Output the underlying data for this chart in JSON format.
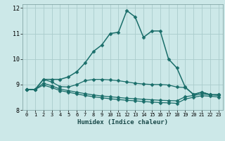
{
  "title": "",
  "xlabel": "Humidex (Indice chaleur)",
  "ylabel": "",
  "bg_color": "#cce8e8",
  "grid_color": "#aacccc",
  "line_color": "#1a6e6a",
  "xlim": [
    -0.5,
    23.5
  ],
  "ylim": [
    8.4,
    12.15
  ],
  "xticks": [
    0,
    1,
    2,
    3,
    4,
    5,
    6,
    7,
    8,
    9,
    10,
    11,
    12,
    13,
    14,
    15,
    16,
    17,
    18,
    19,
    20,
    21,
    22,
    23
  ],
  "yticks": [
    8,
    9,
    10,
    11,
    12
  ],
  "series": [
    {
      "x": [
        0,
        1,
        2,
        3,
        4,
        5,
        6,
        7,
        8,
        9,
        10,
        11,
        12,
        13,
        14,
        15,
        16,
        17,
        18,
        19,
        20,
        21,
        22,
        23
      ],
      "y": [
        8.8,
        8.8,
        9.2,
        9.2,
        9.2,
        9.3,
        9.5,
        9.85,
        10.3,
        10.55,
        11.0,
        11.05,
        11.9,
        11.65,
        10.85,
        11.1,
        11.1,
        10.0,
        9.65,
        8.9,
        8.6,
        8.7,
        8.6,
        8.6
      ],
      "marker": "D",
      "markersize": 2.5,
      "linewidth": 1.1
    },
    {
      "x": [
        0,
        1,
        2,
        3,
        4,
        5,
        6,
        7,
        8,
        9,
        10,
        11,
        12,
        13,
        14,
        15,
        16,
        17,
        18,
        19,
        20,
        21,
        22,
        23
      ],
      "y": [
        8.8,
        8.8,
        9.2,
        9.1,
        8.92,
        8.9,
        9.0,
        9.15,
        9.2,
        9.2,
        9.18,
        9.15,
        9.1,
        9.05,
        9.02,
        9.0,
        9.0,
        8.98,
        8.9,
        8.88,
        8.62,
        8.7,
        8.6,
        8.6
      ],
      "marker": "D",
      "markersize": 2.5,
      "linewidth": 0.9
    },
    {
      "x": [
        0,
        1,
        2,
        3,
        4,
        5,
        6,
        7,
        8,
        9,
        10,
        11,
        12,
        13,
        14,
        15,
        16,
        17,
        18,
        19,
        20,
        21,
        22,
        23
      ],
      "y": [
        8.8,
        8.8,
        9.05,
        8.95,
        8.82,
        8.76,
        8.7,
        8.64,
        8.59,
        8.55,
        8.52,
        8.49,
        8.46,
        8.44,
        8.42,
        8.4,
        8.38,
        8.37,
        8.36,
        8.52,
        8.57,
        8.63,
        8.6,
        8.57
      ],
      "marker": "D",
      "markersize": 2.5,
      "linewidth": 0.9
    },
    {
      "x": [
        0,
        1,
        2,
        3,
        4,
        5,
        6,
        7,
        8,
        9,
        10,
        11,
        12,
        13,
        14,
        15,
        16,
        17,
        18,
        19,
        20,
        21,
        22,
        23
      ],
      "y": [
        8.8,
        8.8,
        8.98,
        8.88,
        8.76,
        8.7,
        8.63,
        8.57,
        8.52,
        8.48,
        8.44,
        8.41,
        8.38,
        8.36,
        8.33,
        8.31,
        8.29,
        8.28,
        8.26,
        8.43,
        8.5,
        8.56,
        8.54,
        8.51
      ],
      "marker": "D",
      "markersize": 2.5,
      "linewidth": 0.9
    }
  ]
}
